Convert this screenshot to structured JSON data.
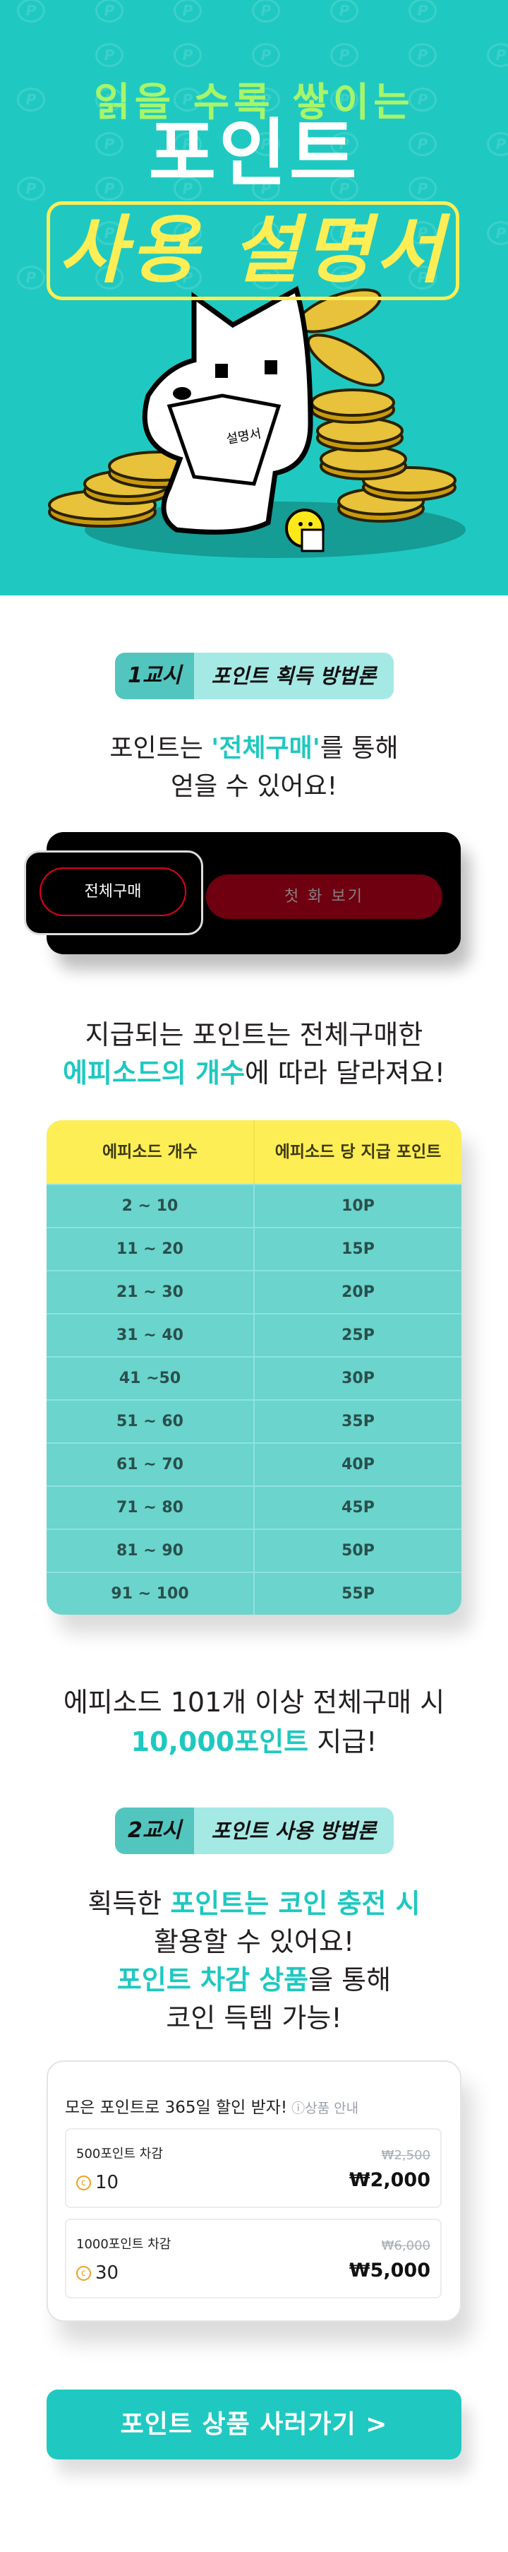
{
  "colors": {
    "brand_teal": "#1fc9c1",
    "highlight_teal": "#1ec8c0",
    "hero_yellow": "#fdee55",
    "hero_green": "#a6f56a",
    "table_teal": "#6ad4cd",
    "dark_red": "#6e0010",
    "coin_orange": "#f0a020"
  },
  "hero": {
    "subtitle": "읽을 수록 쌓이는",
    "title": "포인트",
    "boxed_title": "사용 설명서",
    "illustration_book_text": "설명서",
    "pattern_icon": "p-coin-icon"
  },
  "section1": {
    "badge_number": "1교시",
    "badge_text": "포인트 획득 방법론",
    "desc_pre": "포인트는 ",
    "desc_highlight": "'전체구매'",
    "desc_post": "를 통해",
    "desc_line2": "얻을 수 있어요!",
    "demo": {
      "full_purchase_label": "전체구매",
      "first_episode_label": "첫 화 보기"
    },
    "table_intro_line1": "지급되는 포인트는 전체구매한",
    "table_intro_highlight": "에피소드의 개수",
    "table_intro_post": "에 따라 달라져요!",
    "table": {
      "headers": [
        "에피소드 개수",
        "에피소드 당 지급 포인트"
      ],
      "rows": [
        [
          "2 ~ 10",
          "10P"
        ],
        [
          "11 ~ 20",
          "15P"
        ],
        [
          "21 ~ 30",
          "20P"
        ],
        [
          "31 ~ 40",
          "25P"
        ],
        [
          "41  ~50",
          "30P"
        ],
        [
          "51 ~ 60",
          "35P"
        ],
        [
          "61 ~ 70",
          "40P"
        ],
        [
          "71 ~ 80",
          "45P"
        ],
        [
          "81 ~ 90",
          "50P"
        ],
        [
          "91 ~ 100",
          "55P"
        ]
      ]
    },
    "bonus_line1": "에피소드 101개 이상 전체구매 시",
    "bonus_highlight": "10,000포인트",
    "bonus_post": " 지급!"
  },
  "section2": {
    "badge_number": "2교시",
    "badge_text": "포인트 사용 방법론",
    "line1_pre": "획득한 ",
    "line1_highlight": "포인트는 코인 충전 시",
    "line2": "활용할 수 있어요!",
    "line3_highlight": "포인트 차감 상품",
    "line3_post": "을 통해",
    "line4": "코인 득템 가능!",
    "shop": {
      "title": "모은 포인트로 365일 할인 받자!",
      "info_label": "ⓘ상품 안내",
      "items": [
        {
          "name": "500포인트 차감",
          "coins": "10",
          "original_price": "₩2,500",
          "price": "₩2,000"
        },
        {
          "name": "1000포인트 차감",
          "coins": "30",
          "original_price": "₩6,000",
          "price": "₩5,000"
        }
      ]
    },
    "cta_label": "포인트 상품 사러가기  >"
  }
}
